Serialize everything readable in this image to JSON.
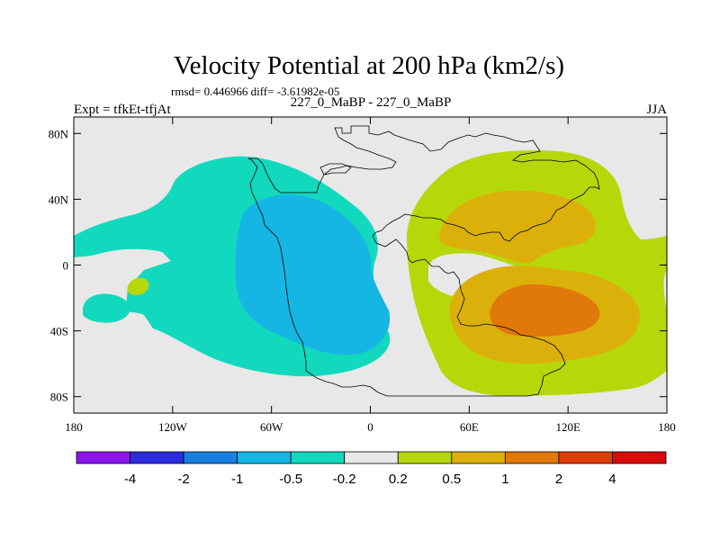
{
  "chart_data": {
    "type": "heatmap",
    "title": "Velocity Potential at 200 hPa (km2/s)",
    "stats": "rmsd= 0.446966  diff= -3.61982e-05",
    "left_label": "Expt = tfkEt-tfjAt",
    "center_label": "227_0_MaBP - 227_0_MaBP",
    "right_label": "JJA",
    "x_ticks": [
      "180",
      "120W",
      "60W",
      "0",
      "60E",
      "120E",
      "180"
    ],
    "x_tick_values": [
      -180,
      -120,
      -60,
      0,
      60,
      120,
      180
    ],
    "y_ticks": [
      "80N",
      "40N",
      "0",
      "40S",
      "80S"
    ],
    "y_tick_values": [
      80,
      40,
      0,
      -40,
      -80
    ],
    "xlim": [
      -180,
      180
    ],
    "ylim": [
      -90,
      90
    ],
    "colorbar": {
      "labels": [
        "-4",
        "-2",
        "-1",
        "-0.5",
        "-0.2",
        "0.2",
        "0.5",
        "1",
        "2",
        "4"
      ],
      "colors": [
        "#8c14ef",
        "#2b2bdf",
        "#1a7fe0",
        "#15b6e4",
        "#12d9be",
        "#e8e8e8",
        "#b6d80a",
        "#dcb00a",
        "#e0780a",
        "#df3c0a",
        "#db0a0a"
      ]
    },
    "regions": [
      {
        "level": "-0.5 to -0.2",
        "desc": "broad negative region over Americas and Atlantic",
        "lon_range": [
          -180,
          20
        ],
        "lat_range": [
          -75,
          65
        ]
      },
      {
        "level": "-1 to -0.5",
        "desc": "negative core over South America / Atlantic",
        "center": [
          -40,
          10
        ]
      },
      {
        "level": "0.2 to 0.5",
        "desc": "positive region over Africa, Indian Ocean and Asia",
        "lon_range": [
          20,
          180
        ],
        "lat_range": [
          -80,
          70
        ]
      },
      {
        "level": "0.5 to 1",
        "desc": "positive lobes",
        "center": [
          80,
          30
        ]
      },
      {
        "level": "1 to 2",
        "desc": "positive core",
        "center": [
          95,
          -30
        ]
      }
    ]
  }
}
